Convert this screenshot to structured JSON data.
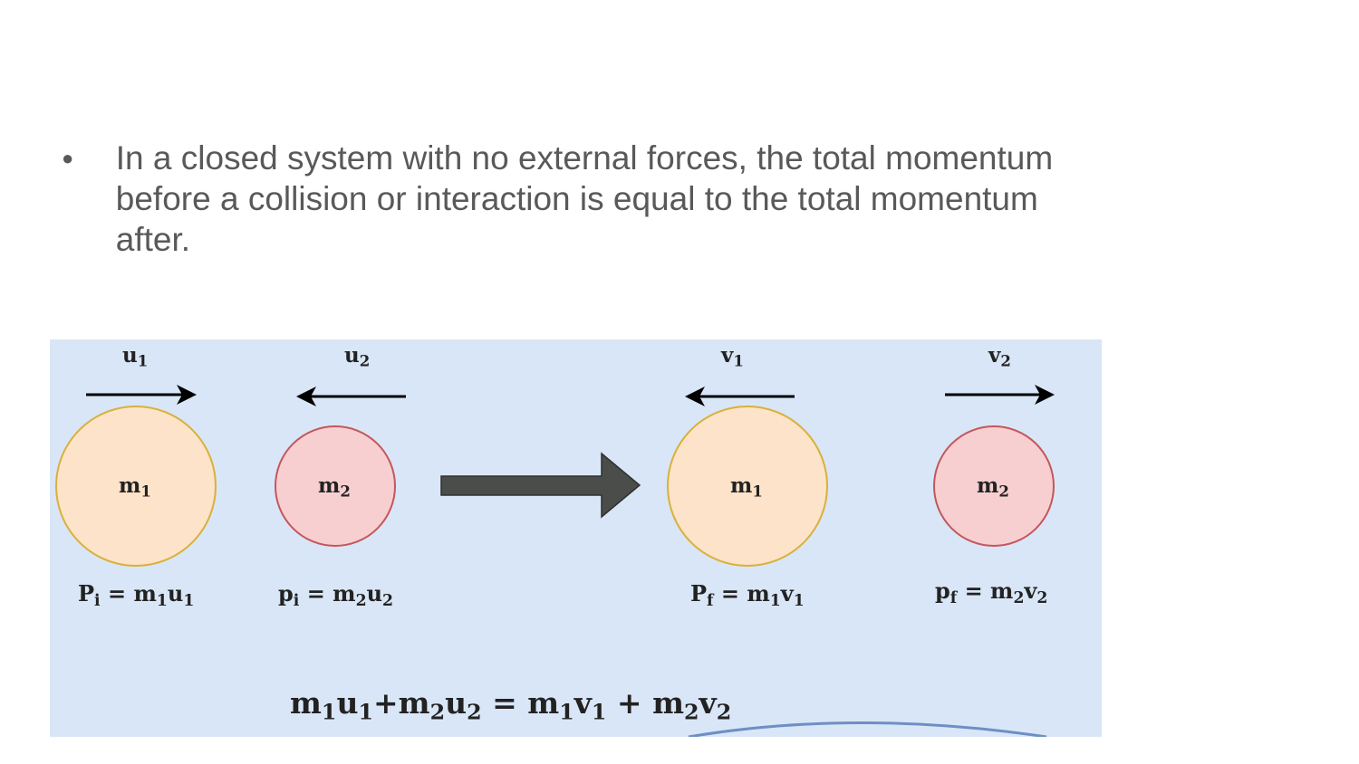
{
  "bullet": {
    "text": "In a closed system with no external forces, the total momentum before a collision or interaction is equal to the total momentum after."
  },
  "figure": {
    "before": {
      "ball1": {
        "velocity": "u",
        "velocity_sub": "1",
        "mass": "m",
        "mass_sub": "1",
        "momentum": {
          "lhs": "P",
          "lhs_sub": "i",
          "rhs_a": "m",
          "rhs_a_sub": "1",
          "rhs_b": "u",
          "rhs_b_sub": "1"
        }
      },
      "ball2": {
        "velocity": "u",
        "velocity_sub": "2",
        "mass": "m",
        "mass_sub": "2",
        "momentum": {
          "lhs": "p",
          "lhs_sub": "i",
          "rhs_a": "m",
          "rhs_a_sub": "2",
          "rhs_b": "u",
          "rhs_b_sub": "2"
        }
      }
    },
    "after": {
      "ball1": {
        "velocity": "v",
        "velocity_sub": "1",
        "mass": "m",
        "mass_sub": "1",
        "momentum": {
          "lhs": "P",
          "lhs_sub": "f",
          "rhs_a": "m",
          "rhs_a_sub": "1",
          "rhs_b": "v",
          "rhs_b_sub": "1"
        }
      },
      "ball2": {
        "velocity": "v",
        "velocity_sub": "2",
        "mass": "m",
        "mass_sub": "2",
        "momentum": {
          "lhs": "p",
          "lhs_sub": "f",
          "rhs_a": "m",
          "rhs_a_sub": "2",
          "rhs_b": "v",
          "rhs_b_sub": "2"
        }
      }
    },
    "equation": {
      "t1": "m",
      "s1": "1",
      "t2": "u",
      "s2": "1",
      "plus1": "+",
      "t3": "m",
      "s3": "2",
      "t4": "u",
      "s4": "2",
      "equals": " = ",
      "t5": "m",
      "s5": "1",
      "t6": "v",
      "s6": "1",
      "plus2": " + ",
      "t7": "m",
      "s7": "2",
      "t8": "v",
      "s8": "2"
    },
    "equals_sign": " = ",
    "colors": {
      "panel": "#d9e6f7",
      "big_ball_fill": "#fde3c9",
      "big_ball_stroke": "#d9b13a",
      "small_ball_fill": "#f7cfd1",
      "small_ball_stroke": "#c4575b",
      "arrow": "#4a4d4a"
    },
    "icons": [
      "arrow-right-icon",
      "arrow-left-icon",
      "process-arrow-icon"
    ]
  }
}
